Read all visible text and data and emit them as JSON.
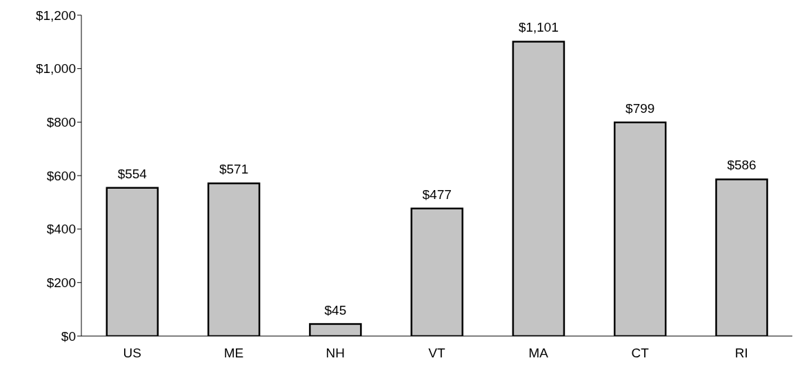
{
  "chart_data": {
    "type": "bar",
    "categories": [
      "US",
      "ME",
      "NH",
      "VT",
      "MA",
      "CT",
      "RI"
    ],
    "values": [
      554,
      571,
      45,
      477,
      1101,
      799,
      586
    ],
    "value_labels": [
      "$554",
      "$571",
      "$45",
      "$477",
      "$1,101",
      "$799",
      "$586"
    ],
    "color": "#c4c4c4",
    "ylim": [
      0,
      1200
    ],
    "yticks": [
      {
        "value": 0,
        "label": "$0"
      },
      {
        "value": 200,
        "label": "$200"
      },
      {
        "value": 400,
        "label": "$400"
      },
      {
        "value": 600,
        "label": "$600"
      },
      {
        "value": 800,
        "label": "$800"
      },
      {
        "value": 1000,
        "label": "$1,000"
      },
      {
        "value": 1200,
        "label": "$1,200"
      }
    ]
  }
}
